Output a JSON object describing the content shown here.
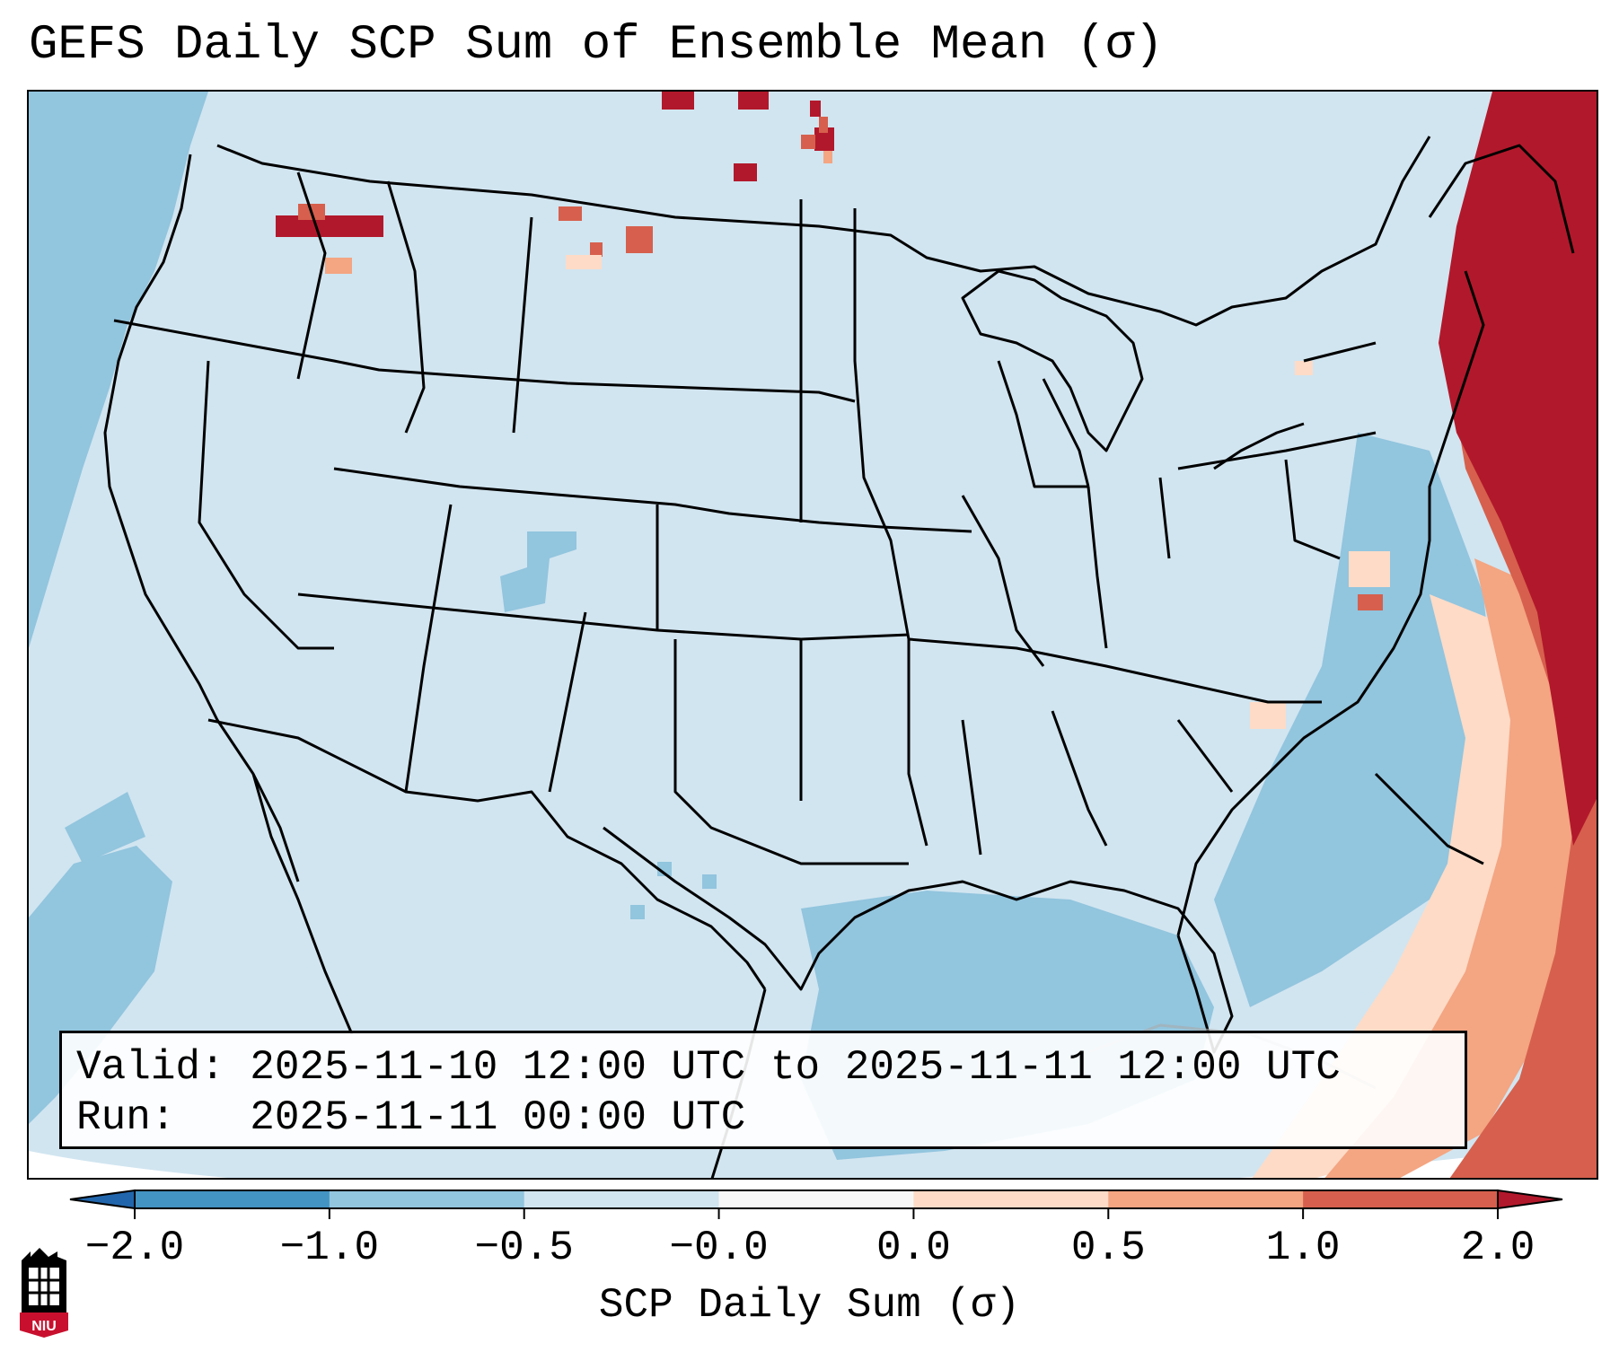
{
  "title": "GEFS Daily SCP Sum of Ensemble Mean (σ)",
  "info": {
    "valid_label": "Valid:",
    "valid_value": "2025-11-10 12:00 UTC to 2025-11-11 12:00 UTC",
    "run_label": "Run:",
    "run_value": "2025-11-11 00:00 UTC"
  },
  "colorbar": {
    "label": "SCP Daily Sum (σ)",
    "ticks": [
      "−2.0",
      "−1.0",
      "−0.5",
      "−0.0",
      "0.0",
      "0.5",
      "1.0",
      "2.0"
    ],
    "colors": [
      "#4393c3",
      "#92c5de",
      "#d1e5f0",
      "#f7f7f7",
      "#fddbc7",
      "#f4a582",
      "#d6604d"
    ],
    "under_color": "#2166ac",
    "over_color": "#b2182b"
  },
  "logo_text": "NIU",
  "colors": {
    "land_bg": "#d1e5f0",
    "ocean_bg": "#92c5de",
    "strong_pos": "#b2182b",
    "mid_pos": "#d6604d",
    "light_pos": "#f4a582",
    "faint_pos": "#fddbc7"
  }
}
